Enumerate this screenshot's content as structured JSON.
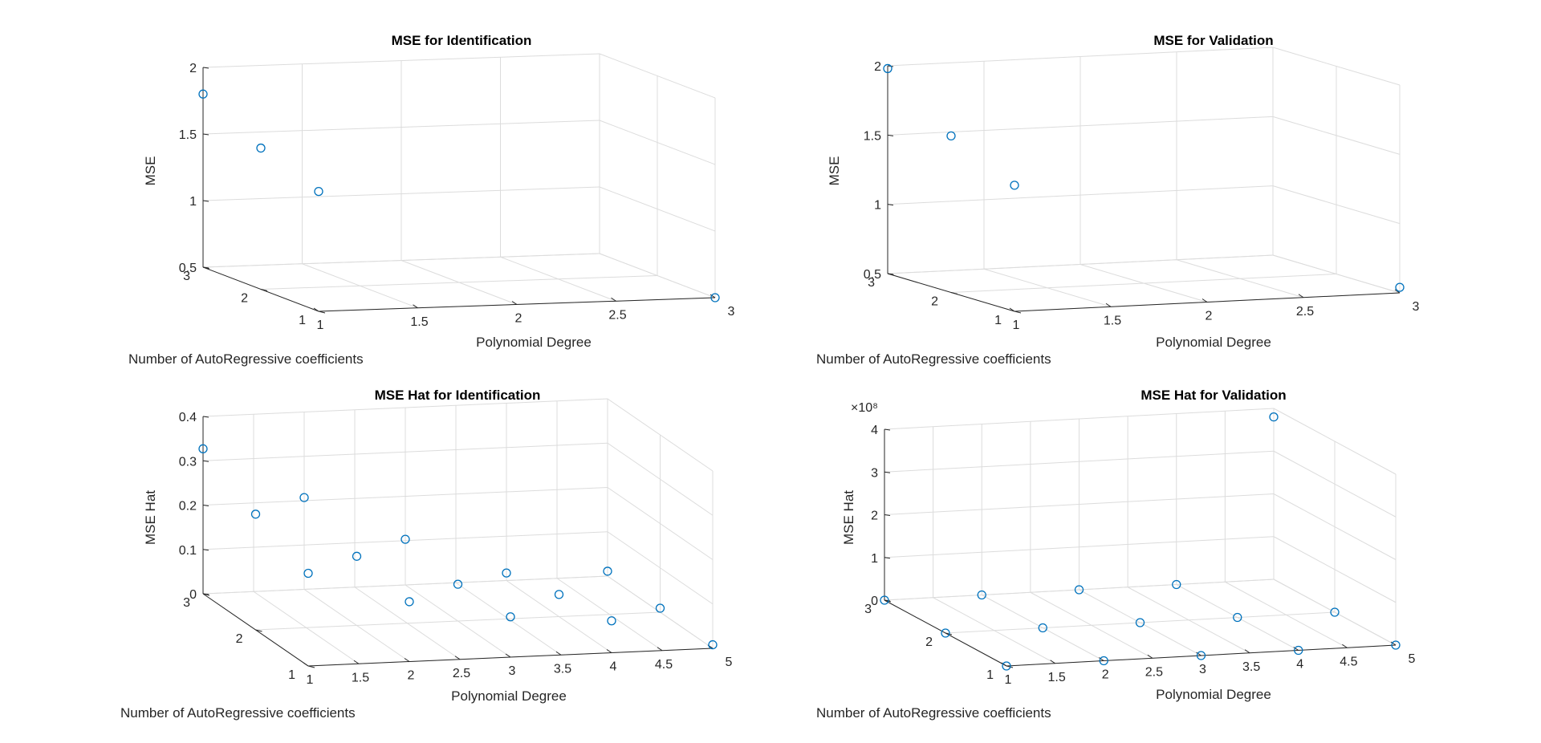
{
  "chart_data": [
    {
      "type": "scatter",
      "title": "MSE for Identification",
      "xlabel": "Polynomial Degree",
      "ylabel": "Number of AutoRegressive coefficients",
      "zlabel": "MSE",
      "xlim": [
        1,
        3
      ],
      "ylim": [
        1,
        3
      ],
      "zlim": [
        0.5,
        2
      ],
      "xticks": [
        "1",
        "1.5",
        "2",
        "2.5",
        "3"
      ],
      "yticks": [
        "1",
        "2",
        "3"
      ],
      "zticks": [
        "0.5",
        "1",
        "1.5",
        "2"
      ],
      "exponent": "",
      "points": [
        {
          "x": 1,
          "y": 3,
          "z": 1.8
        },
        {
          "x": 1,
          "y": 2,
          "z": 1.56
        },
        {
          "x": 1,
          "y": 1,
          "z": 1.4
        },
        {
          "x": 3,
          "y": 1,
          "z": 0.5
        }
      ]
    },
    {
      "type": "scatter",
      "title": "MSE for Validation",
      "xlabel": "Polynomial Degree",
      "ylabel": "Number of AutoRegressive coefficients",
      "zlabel": "MSE",
      "xlim": [
        1,
        3
      ],
      "ylim": [
        1,
        3
      ],
      "zlim": [
        0.5,
        2
      ],
      "xticks": [
        "1",
        "1.5",
        "2",
        "2.5",
        "3"
      ],
      "yticks": [
        "1",
        "2",
        "3"
      ],
      "zticks": [
        "0.5",
        "1",
        "1.5",
        "2"
      ],
      "exponent": "",
      "points": [
        {
          "x": 1,
          "y": 3,
          "z": 1.98
        },
        {
          "x": 1,
          "y": 2,
          "z": 1.63
        },
        {
          "x": 1,
          "y": 1,
          "z": 1.41
        },
        {
          "x": 3,
          "y": 1,
          "z": 0.54
        }
      ]
    },
    {
      "type": "scatter",
      "title": "MSE Hat for Identification",
      "xlabel": "Polynomial Degree",
      "ylabel": "Number of AutoRegressive coefficients",
      "zlabel": "MSE Hat",
      "xlim": [
        1,
        5
      ],
      "ylim": [
        1,
        3
      ],
      "zlim": [
        0,
        0.4
      ],
      "xticks": [
        "1",
        "1.5",
        "2",
        "2.5",
        "3",
        "3.5",
        "4",
        "4.5",
        "5"
      ],
      "yticks": [
        "1",
        "2",
        "3"
      ],
      "zticks": [
        "0",
        "0.1",
        "0.2",
        "0.3",
        "0.4"
      ],
      "exponent": "",
      "points": [
        {
          "x": 1,
          "y": 3,
          "z": 0.327
        },
        {
          "x": 1,
          "y": 2,
          "z": 0.261
        },
        {
          "x": 1,
          "y": 1,
          "z": 0.209
        },
        {
          "x": 2,
          "y": 3,
          "z": 0.207
        },
        {
          "x": 2,
          "y": 2,
          "z": 0.156
        },
        {
          "x": 2,
          "y": 1,
          "z": 0.135
        },
        {
          "x": 3,
          "y": 3,
          "z": 0.103
        },
        {
          "x": 3,
          "y": 2,
          "z": 0.083
        },
        {
          "x": 3,
          "y": 1,
          "z": 0.091
        },
        {
          "x": 4,
          "y": 3,
          "z": 0.017
        },
        {
          "x": 4,
          "y": 2,
          "z": 0.05
        },
        {
          "x": 4,
          "y": 1,
          "z": 0.072
        },
        {
          "x": 5,
          "y": 3,
          "z": 0.011
        },
        {
          "x": 5,
          "y": 2,
          "z": 0.009
        },
        {
          "x": 5,
          "y": 1,
          "z": 0.008
        }
      ]
    },
    {
      "type": "scatter",
      "title": "MSE Hat for Validation",
      "xlabel": "Polynomial Degree",
      "ylabel": "Number of AutoRegressive coefficients",
      "zlabel": "MSE Hat",
      "xlim": [
        1,
        5
      ],
      "ylim": [
        1,
        3
      ],
      "zlim": [
        0,
        4
      ],
      "xticks": [
        "1",
        "1.5",
        "2",
        "2.5",
        "3",
        "3.5",
        "4",
        "4.5",
        "5"
      ],
      "yticks": [
        "1",
        "2",
        "3"
      ],
      "zticks": [
        "0",
        "1",
        "2",
        "3",
        "4"
      ],
      "exponent": "×10⁸",
      "points": [
        {
          "x": 1,
          "y": 3,
          "z": 0
        },
        {
          "x": 1,
          "y": 2,
          "z": 0
        },
        {
          "x": 1,
          "y": 1,
          "z": 0
        },
        {
          "x": 2,
          "y": 3,
          "z": 0
        },
        {
          "x": 2,
          "y": 2,
          "z": 0
        },
        {
          "x": 2,
          "y": 1,
          "z": 0
        },
        {
          "x": 3,
          "y": 3,
          "z": 0
        },
        {
          "x": 3,
          "y": 2,
          "z": 0
        },
        {
          "x": 3,
          "y": 1,
          "z": 0
        },
        {
          "x": 4,
          "y": 3,
          "z": 0
        },
        {
          "x": 4,
          "y": 2,
          "z": 0
        },
        {
          "x": 4,
          "y": 1,
          "z": 0
        },
        {
          "x": 5,
          "y": 3,
          "z": 3.8
        },
        {
          "x": 5,
          "y": 2,
          "z": 0
        },
        {
          "x": 5,
          "y": 1,
          "z": 0
        }
      ]
    }
  ]
}
